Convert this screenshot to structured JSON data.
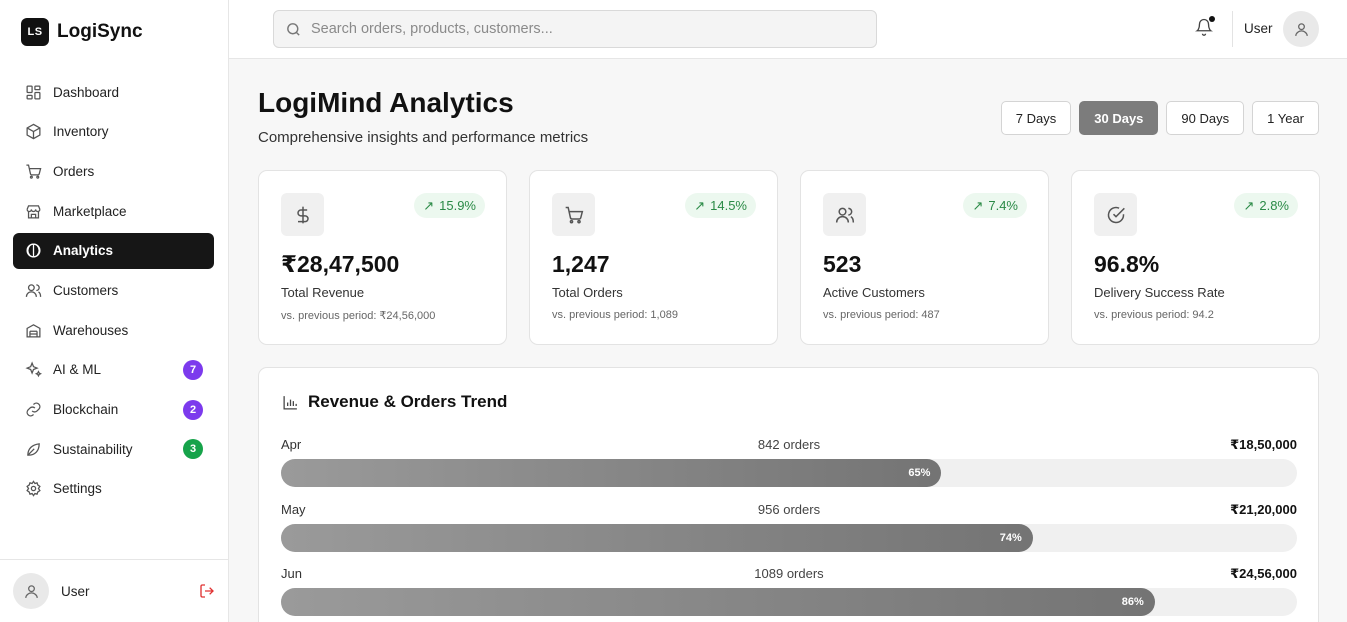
{
  "brand": {
    "mark": "LS",
    "name": "LogiSync"
  },
  "sidebar": {
    "items": [
      {
        "label": "Dashboard",
        "icon": "dashboard-icon",
        "badge": ""
      },
      {
        "label": "Inventory",
        "icon": "box-icon",
        "badge": ""
      },
      {
        "label": "Orders",
        "icon": "cart-icon",
        "badge": ""
      },
      {
        "label": "Marketplace",
        "icon": "store-icon",
        "badge": ""
      },
      {
        "label": "Analytics",
        "icon": "analytics-icon",
        "badge": "",
        "active": true
      },
      {
        "label": "Customers",
        "icon": "users-icon",
        "badge": ""
      },
      {
        "label": "Warehouses",
        "icon": "warehouse-icon",
        "badge": ""
      },
      {
        "label": "AI & ML",
        "icon": "sparkles-icon",
        "badge": "7",
        "badge_color": "#7c3aed"
      },
      {
        "label": "Blockchain",
        "icon": "link-icon",
        "badge": "2",
        "badge_color": "#7c3aed"
      },
      {
        "label": "Sustainability",
        "icon": "leaf-icon",
        "badge": "3",
        "badge_color": "#16a34a"
      },
      {
        "label": "Settings",
        "icon": "gear-icon",
        "badge": ""
      }
    ],
    "footer_user": "User"
  },
  "topbar": {
    "search_placeholder": "Search orders, products, customers...",
    "user": "User"
  },
  "page": {
    "title": "LogiMind Analytics",
    "subtitle": "Comprehensive insights and performance metrics",
    "ranges": [
      "7 Days",
      "30 Days",
      "90 Days",
      "1 Year"
    ],
    "active_range": "30 Days"
  },
  "kpis": [
    {
      "icon": "dollar-icon",
      "trend": "15.9%",
      "value": "₹28,47,500",
      "label": "Total Revenue",
      "previous": "vs. previous period: ₹24,56,000"
    },
    {
      "icon": "cart-icon",
      "trend": "14.5%",
      "value": "1,247",
      "label": "Total Orders",
      "previous": "vs. previous period: 1,089"
    },
    {
      "icon": "users-icon",
      "trend": "7.4%",
      "value": "523",
      "label": "Active Customers",
      "previous": "vs. previous period: 487"
    },
    {
      "icon": "check-circle-icon",
      "trend": "2.8%",
      "value": "96.8%",
      "label": "Delivery Success Rate",
      "previous": "vs. previous period: 94.2"
    }
  ],
  "trend_panel": {
    "title": "Revenue & Orders Trend",
    "rows": [
      {
        "month": "Apr",
        "orders": "842 orders",
        "revenue": "₹18,50,000",
        "percent": 65,
        "percent_label": "65%"
      },
      {
        "month": "May",
        "orders": "956 orders",
        "revenue": "₹21,20,000",
        "percent": 74,
        "percent_label": "74%"
      },
      {
        "month": "Jun",
        "orders": "1089 orders",
        "revenue": "₹24,56,000",
        "percent": 86,
        "percent_label": "86%"
      }
    ]
  }
}
